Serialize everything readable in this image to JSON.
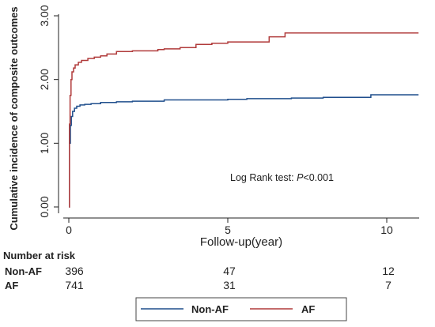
{
  "chart_data": {
    "type": "line",
    "step": true,
    "title": "",
    "xlabel": "Follow-up(year)",
    "ylabel": "Cumulative incidence of composite outcomes",
    "xlim": [
      0,
      11
    ],
    "ylim": [
      0,
      3
    ],
    "x_ticks": [
      0,
      5,
      10
    ],
    "x_tick_labels": [
      "0",
      "5",
      "10"
    ],
    "y_ticks": [
      0,
      1,
      2,
      3
    ],
    "y_tick_labels": [
      "0.00",
      "1.00",
      "2.00",
      "3.00"
    ],
    "grid": false,
    "legend_position": "bottom",
    "annotation": {
      "text_prefix": "Log Rank test: ",
      "p_symbol": "P",
      "text_suffix": "<0.001"
    },
    "series": [
      {
        "name": "Non-AF",
        "color": "#1f4e8c",
        "x": [
          0,
          0.02,
          0.05,
          0.08,
          0.12,
          0.18,
          0.25,
          0.35,
          0.5,
          0.7,
          1.0,
          1.5,
          2.0,
          3.0,
          4.0,
          5.0,
          5.6,
          7.0,
          8.0,
          9.5,
          11.0
        ],
        "y": [
          0,
          1.0,
          1.28,
          1.42,
          1.5,
          1.55,
          1.58,
          1.6,
          1.61,
          1.62,
          1.64,
          1.65,
          1.66,
          1.68,
          1.68,
          1.69,
          1.7,
          1.71,
          1.72,
          1.76,
          1.76
        ]
      },
      {
        "name": "AF",
        "color": "#b03a3a",
        "x": [
          0,
          0.02,
          0.04,
          0.07,
          0.1,
          0.15,
          0.2,
          0.3,
          0.4,
          0.6,
          0.8,
          1.0,
          1.2,
          1.5,
          2.0,
          2.8,
          3.0,
          3.5,
          4.0,
          4.5,
          5.0,
          6.3,
          6.8,
          8.0,
          11.0
        ],
        "y": [
          0,
          1.3,
          1.75,
          2.0,
          2.12,
          2.18,
          2.23,
          2.27,
          2.3,
          2.33,
          2.35,
          2.37,
          2.4,
          2.44,
          2.45,
          2.47,
          2.48,
          2.5,
          2.55,
          2.57,
          2.59,
          2.67,
          2.73,
          2.73,
          2.73
        ]
      }
    ],
    "risk_table": {
      "title": "Number at risk",
      "times": [
        0,
        5,
        10
      ],
      "rows": [
        {
          "label": "Non-AF",
          "values": [
            "396",
            "47",
            "12"
          ]
        },
        {
          "label": "AF",
          "values": [
            "741",
            "31",
            "7"
          ]
        }
      ]
    }
  }
}
